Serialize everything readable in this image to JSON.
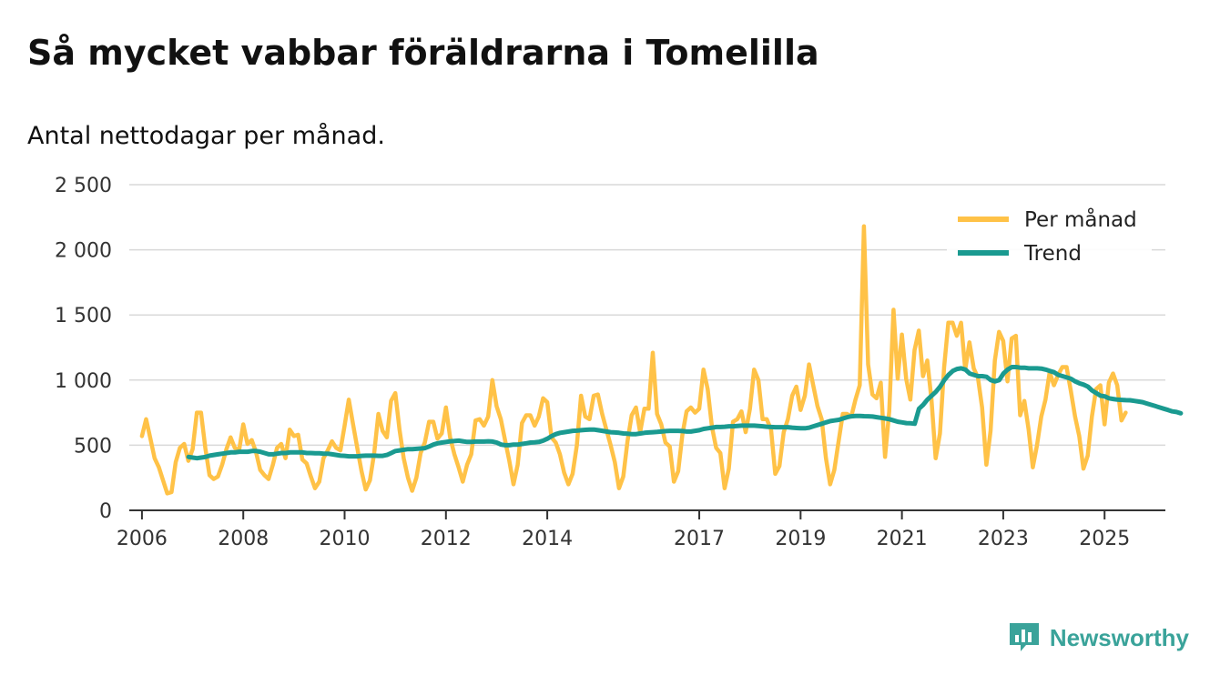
{
  "title": "Så mycket vabbar föräldrarna i Tomelilla",
  "subtitle": "Antal nettodagar per månad.",
  "brand": "Newsworthy",
  "colors": {
    "monthly": "#ffc247",
    "trend": "#1a9a90",
    "grid": "#d9d9d9",
    "axis": "#333333",
    "brand": "#3aa39a"
  },
  "chart_data": {
    "type": "line",
    "title": "Så mycket vabbar föräldrarna i Tomelilla",
    "subtitle": "Antal nettodagar per månad.",
    "xlabel": "",
    "ylabel": "",
    "xlim": [
      2005.75,
      2026.2
    ],
    "ylim": [
      0,
      2500
    ],
    "yticks": [
      0,
      500,
      1000,
      1500,
      2000,
      2500
    ],
    "ytick_labels": [
      "0",
      "500",
      "1 000",
      "1 500",
      "2 000",
      "2 500"
    ],
    "xticks": [
      2006,
      2008,
      2010,
      2012,
      2014,
      2017,
      2019,
      2021,
      2023,
      2025
    ],
    "xtick_labels": [
      "2006",
      "2008",
      "2010",
      "2012",
      "2014",
      "2017",
      "2019",
      "2021",
      "2023",
      "2025"
    ],
    "legend_position": "top-right",
    "series": [
      {
        "name": "Per månad",
        "x_start": 2006.0,
        "step": 0.0833333,
        "values": [
          570,
          700,
          550,
          400,
          330,
          230,
          130,
          140,
          370,
          480,
          510,
          380,
          470,
          750,
          750,
          480,
          270,
          240,
          260,
          350,
          470,
          560,
          480,
          460,
          660,
          510,
          540,
          450,
          310,
          270,
          240,
          350,
          480,
          510,
          400,
          620,
          570,
          580,
          390,
          360,
          260,
          170,
          220,
          400,
          460,
          530,
          480,
          460,
          650,
          850,
          660,
          480,
          300,
          160,
          230,
          440,
          740,
          610,
          560,
          840,
          900,
          620,
          400,
          250,
          150,
          250,
          440,
          520,
          680,
          680,
          550,
          590,
          790,
          560,
          430,
          330,
          220,
          350,
          430,
          690,
          700,
          650,
          720,
          1000,
          800,
          700,
          540,
          380,
          200,
          350,
          670,
          730,
          730,
          650,
          720,
          860,
          830,
          560,
          520,
          430,
          290,
          200,
          280,
          500,
          880,
          720,
          700,
          880,
          890,
          740,
          620,
          500,
          370,
          170,
          260,
          530,
          730,
          790,
          600,
          780,
          780,
          1210,
          740,
          660,
          520,
          490,
          220,
          300,
          580,
          760,
          790,
          750,
          780,
          1080,
          930,
          640,
          480,
          440,
          170,
          320,
          680,
          700,
          760,
          600,
          780,
          1080,
          1000,
          700,
          700,
          620,
          280,
          340,
          600,
          700,
          880,
          950,
          770,
          880,
          1120,
          960,
          800,
          700,
          400,
          200,
          310,
          530,
          740,
          740,
          720,
          850,
          960,
          2180,
          1120,
          890,
          860,
          980,
          410,
          760,
          1540,
          1010,
          1350,
          1010,
          850,
          1230,
          1380,
          1030,
          1150,
          850,
          400,
          590,
          1100,
          1440,
          1440,
          1340,
          1440,
          1080,
          1290,
          1090,
          1020,
          790,
          350,
          610,
          1150,
          1370,
          1300,
          990,
          1320,
          1340,
          730,
          840,
          620,
          330,
          500,
          720,
          850,
          1060,
          960,
          1040,
          1100,
          1100,
          920,
          720,
          570,
          320,
          420,
          720,
          930,
          960,
          660,
          980,
          1050,
          960,
          690,
          750
        ]
      },
      {
        "name": "Trend",
        "x_start": 2006.92,
        "step": 0.0833333,
        "values": [
          410,
          405,
          400,
          405,
          410,
          420,
          425,
          430,
          435,
          440,
          445,
          445,
          450,
          450,
          450,
          455,
          455,
          450,
          440,
          430,
          430,
          435,
          440,
          440,
          445,
          445,
          445,
          445,
          440,
          440,
          438,
          438,
          435,
          435,
          430,
          425,
          420,
          418,
          415,
          415,
          415,
          418,
          420,
          420,
          420,
          418,
          418,
          425,
          440,
          455,
          460,
          465,
          470,
          470,
          472,
          475,
          478,
          490,
          505,
          515,
          520,
          525,
          530,
          532,
          535,
          530,
          525,
          525,
          528,
          528,
          528,
          530,
          528,
          520,
          505,
          500,
          500,
          505,
          505,
          510,
          515,
          520,
          522,
          525,
          535,
          550,
          570,
          585,
          595,
          600,
          605,
          610,
          612,
          615,
          618,
          620,
          620,
          615,
          610,
          605,
          600,
          598,
          595,
          590,
          588,
          585,
          585,
          590,
          595,
          598,
          600,
          602,
          605,
          608,
          610,
          610,
          610,
          608,
          605,
          605,
          610,
          615,
          625,
          630,
          635,
          640,
          640,
          642,
          645,
          645,
          648,
          650,
          650,
          650,
          650,
          648,
          645,
          642,
          640,
          638,
          638,
          638,
          638,
          635,
          632,
          630,
          630,
          635,
          645,
          655,
          665,
          675,
          685,
          690,
          695,
          705,
          715,
          722,
          725,
          725,
          723,
          722,
          720,
          715,
          710,
          705,
          700,
          690,
          680,
          675,
          670,
          668,
          665,
          780,
          810,
          850,
          880,
          910,
          950,
          1000,
          1040,
          1070,
          1085,
          1090,
          1080,
          1050,
          1040,
          1030,
          1030,
          1025,
          1000,
          990,
          1000,
          1050,
          1080,
          1100,
          1100,
          1095,
          1095,
          1090,
          1090,
          1090,
          1088,
          1080,
          1070,
          1060,
          1040,
          1030,
          1020,
          1010,
          990,
          975,
          965,
          950,
          920,
          900,
          880,
          875,
          860,
          855,
          850,
          848,
          846,
          845,
          840,
          835,
          830,
          820,
          810,
          800,
          790,
          780,
          770,
          760,
          755,
          745
        ]
      }
    ]
  }
}
